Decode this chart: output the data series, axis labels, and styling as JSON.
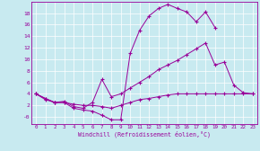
{
  "bg_color": "#c8eaf0",
  "line_color": "#990099",
  "marker": "+",
  "xlabel": "Windchill (Refroidissement éolien,°C)",
  "xlim": [
    -0.5,
    23.5
  ],
  "ylim": [
    -1.2,
    20
  ],
  "xticks": [
    0,
    1,
    2,
    3,
    4,
    5,
    6,
    7,
    8,
    9,
    10,
    11,
    12,
    13,
    14,
    15,
    16,
    17,
    18,
    19,
    20,
    21,
    22,
    23
  ],
  "yticks": [
    0,
    2,
    4,
    6,
    8,
    10,
    12,
    14,
    16,
    18
  ],
  "ytick_labels": [
    "-0",
    "2",
    "4",
    "6",
    "8",
    "10",
    "12",
    "14",
    "16",
    "18"
  ],
  "series1_x": [
    0,
    1,
    2,
    3,
    4,
    5,
    6,
    7,
    8,
    9,
    10,
    11,
    12,
    13,
    14,
    15,
    16,
    17,
    18,
    19
  ],
  "series1_y": [
    4.0,
    3.2,
    2.5,
    2.5,
    1.5,
    1.2,
    1.0,
    0.3,
    -0.5,
    -0.5,
    11.0,
    15.0,
    17.5,
    18.8,
    19.5,
    18.8,
    18.2,
    16.5,
    18.2,
    15.5
  ],
  "series2_x": [
    0,
    1,
    2,
    3,
    4,
    5,
    6,
    7,
    8,
    9,
    10,
    11,
    12,
    13,
    14,
    15,
    16,
    17,
    18,
    19,
    20,
    21,
    22,
    23
  ],
  "series2_y": [
    4.0,
    3.2,
    2.5,
    2.7,
    1.8,
    1.5,
    2.5,
    6.5,
    3.5,
    4.0,
    5.0,
    6.0,
    7.0,
    8.2,
    9.0,
    9.8,
    10.8,
    11.8,
    12.8,
    9.0,
    9.5,
    5.5,
    4.2,
    4.0
  ],
  "series3_x": [
    0,
    1,
    2,
    3,
    4,
    5,
    6,
    7,
    8,
    9,
    10,
    11,
    12,
    13,
    14,
    15,
    16,
    17,
    18,
    19,
    20,
    21,
    22,
    23
  ],
  "series3_y": [
    4.0,
    3.0,
    2.5,
    2.5,
    2.2,
    2.0,
    2.0,
    1.8,
    1.5,
    2.0,
    2.5,
    3.0,
    3.2,
    3.5,
    3.8,
    4.0,
    4.0,
    4.0,
    4.0,
    4.0,
    4.0,
    4.0,
    4.0,
    4.0
  ]
}
